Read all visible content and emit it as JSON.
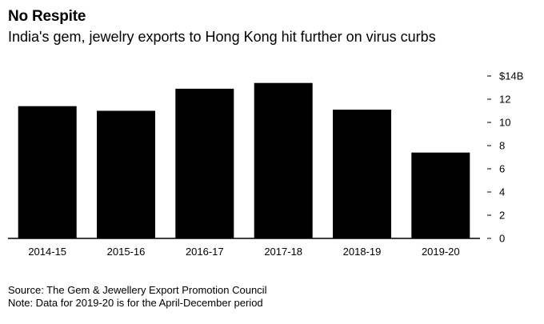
{
  "title": "No Respite",
  "subtitle": "India's gem, jewelry exports to Hong Kong hit further on virus curbs",
  "chart_data": {
    "type": "bar",
    "categories": [
      "2014-15",
      "2015-16",
      "2016-17",
      "2017-18",
      "2018-19",
      "2019-20"
    ],
    "series": [
      {
        "values": [
          11.4,
          11.0,
          12.9,
          13.4,
          11.1,
          7.4
        ]
      }
    ],
    "ylim": [
      0,
      14
    ],
    "yticks": [
      0,
      2,
      4,
      6,
      8,
      10,
      12,
      14
    ],
    "ytick_labels": [
      "0",
      "2",
      "4",
      "6",
      "8",
      "10",
      "12",
      "$14B"
    ],
    "yaxis_position": "right",
    "grid": false,
    "bar_color": "#000000"
  },
  "footer": {
    "source": "Source: The Gem & Jewellery Export Promotion Council",
    "note": "Note: Data for 2019-20 is for the April-December period"
  }
}
